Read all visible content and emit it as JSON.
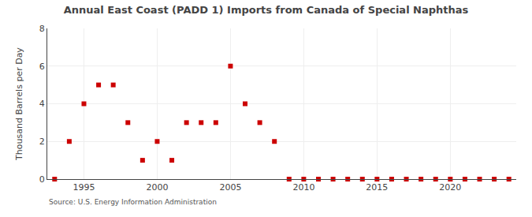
{
  "chart_data": {
    "type": "scatter",
    "title": "Annual East Coast (PADD 1) Imports from Canada of Special Naphthas",
    "ylabel": "Thousand Barrels per Day",
    "annotations": [
      "Source: U.S. Energy Information Administration"
    ],
    "x": [
      1993,
      1994,
      1995,
      1996,
      1997,
      1998,
      1999,
      2000,
      2001,
      2002,
      2003,
      2004,
      2005,
      2006,
      2007,
      2008,
      2009,
      2010,
      2011,
      2012,
      2013,
      2014,
      2015,
      2016,
      2017,
      2018,
      2019,
      2020,
      2021,
      2022,
      2023,
      2024
    ],
    "values": [
      0,
      2,
      4,
      5,
      5,
      3,
      1,
      2,
      1,
      3,
      3,
      3,
      6,
      4,
      3,
      2,
      0,
      0,
      0,
      0,
      0,
      0,
      0,
      0,
      0,
      0,
      0,
      0,
      0,
      0,
      0,
      0
    ],
    "color": "#cc0000",
    "marker": "square",
    "xlim": [
      1992.5,
      2024.5
    ],
    "xticks": [
      1995,
      2000,
      2005,
      2010,
      2015,
      2020
    ],
    "ylim": [
      0,
      8
    ],
    "yticks": [
      0,
      2,
      4,
      6,
      8
    ],
    "grid": true
  }
}
